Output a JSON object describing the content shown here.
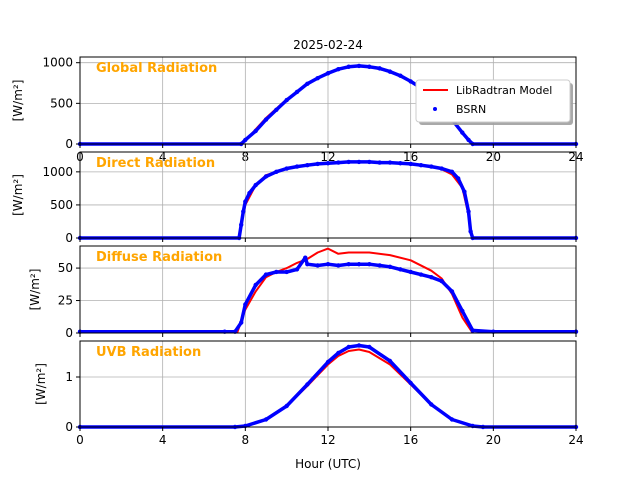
{
  "figure": {
    "title": "2025-02-24",
    "xlabel": "Hour (UTC)",
    "colors": {
      "model": "#ff0000",
      "bsrn": "#0000ff",
      "panel_label": "#ffa500",
      "grid": "#b0b0b0"
    }
  },
  "legend": {
    "model_label": "LibRadtran Model",
    "bsrn_label": "BSRN",
    "location": "upper right of top panel"
  },
  "chart_data": [
    {
      "type": "line",
      "label": "Global Radiation",
      "ylabel": "[W/m²]",
      "xlim": [
        0,
        24
      ],
      "ylim": [
        0,
        1070
      ],
      "xticks": [
        0,
        4,
        8,
        12,
        16,
        20,
        24
      ],
      "xticklabels": [
        "0",
        "4",
        "8",
        "12",
        "16",
        "20",
        "24"
      ],
      "yticks": [
        0,
        500,
        1000
      ],
      "yticklabels": [
        "0",
        "500",
        "1000"
      ],
      "grid": true,
      "series": [
        {
          "name": "LibRadtran Model",
          "style": "line",
          "x": [
            0,
            7.7,
            8,
            9,
            10,
            11,
            12,
            13,
            13.5,
            14,
            15,
            16,
            17,
            18,
            18.5,
            19,
            24
          ],
          "y": [
            0,
            0,
            40,
            320,
            550,
            740,
            880,
            950,
            960,
            950,
            890,
            770,
            580,
            300,
            130,
            0,
            0
          ]
        },
        {
          "name": "BSRN",
          "style": "points",
          "x": [
            0,
            7.8,
            8,
            8.5,
            9,
            9.5,
            10,
            10.5,
            11,
            11.5,
            12,
            12.5,
            13,
            13.5,
            14,
            14.5,
            15,
            15.5,
            16,
            16.5,
            17,
            17.5,
            18,
            18.5,
            18.8,
            19,
            24
          ],
          "y": [
            0,
            0,
            50,
            160,
            300,
            420,
            540,
            640,
            740,
            810,
            870,
            920,
            950,
            960,
            950,
            930,
            890,
            840,
            770,
            690,
            580,
            450,
            300,
            140,
            50,
            0,
            0
          ]
        }
      ]
    },
    {
      "type": "line",
      "label": "Direct Radiation",
      "ylabel": "[W/m²]",
      "xlim": [
        0,
        24
      ],
      "ylim": [
        0,
        1300
      ],
      "xticks": [
        0,
        4,
        8,
        12,
        16,
        20,
        24
      ],
      "xticklabels": [
        "",
        "",
        "",
        "",
        "",
        "",
        ""
      ],
      "yticks": [
        0,
        500,
        1000
      ],
      "yticklabels": [
        "0",
        "500",
        "1000"
      ],
      "grid": true,
      "series": [
        {
          "name": "LibRadtran Model",
          "style": "line",
          "x": [
            7.9,
            8,
            8.5,
            9,
            10,
            11,
            12,
            13,
            14,
            15,
            16,
            17,
            17.5,
            18,
            18.5,
            18.8
          ],
          "y": [
            350,
            500,
            800,
            950,
            1050,
            1110,
            1140,
            1150,
            1150,
            1140,
            1120,
            1080,
            1040,
            960,
            760,
            350
          ]
        },
        {
          "name": "BSRN",
          "style": "points",
          "x": [
            0,
            7.7,
            7.8,
            7.9,
            8,
            8.2,
            8.5,
            9,
            9.5,
            10,
            10.5,
            11,
            11.5,
            12,
            12.5,
            13,
            13.5,
            14,
            14.5,
            15,
            15.5,
            16,
            16.5,
            17,
            17.5,
            18,
            18.3,
            18.6,
            18.8,
            18.9,
            19,
            24
          ],
          "y": [
            0,
            0,
            200,
            400,
            550,
            680,
            800,
            930,
            1000,
            1050,
            1080,
            1100,
            1120,
            1130,
            1140,
            1150,
            1150,
            1150,
            1140,
            1140,
            1130,
            1120,
            1100,
            1080,
            1050,
            1000,
            900,
            700,
            400,
            100,
            0,
            0
          ]
        }
      ]
    },
    {
      "type": "line",
      "label": "Diffuse Radiation",
      "ylabel": "[W/m²]",
      "xlim": [
        0,
        24
      ],
      "ylim": [
        0,
        67
      ],
      "xticks": [
        0,
        4,
        8,
        12,
        16,
        20,
        24
      ],
      "xticklabels": [
        "",
        "",
        "",
        "",
        "",
        "",
        ""
      ],
      "yticks": [
        0,
        25,
        50
      ],
      "yticklabels": [
        "0",
        "25",
        "50"
      ],
      "grid": true,
      "series": [
        {
          "name": "LibRadtran Model",
          "style": "line",
          "x": [
            7.6,
            8,
            8.5,
            9,
            9.5,
            10,
            10.5,
            11,
            11.5,
            12,
            12.5,
            13,
            14,
            15,
            16,
            17,
            17.5,
            18,
            18.5,
            19
          ],
          "y": [
            0,
            18,
            32,
            43,
            47,
            50,
            54,
            57,
            62,
            65,
            61,
            62,
            62,
            60,
            56,
            48,
            42,
            30,
            12,
            0
          ]
        },
        {
          "name": "BSRN",
          "style": "points",
          "x": [
            0,
            7,
            7.5,
            7.8,
            8,
            8.5,
            9,
            9.5,
            10,
            10.5,
            10.9,
            11,
            11.5,
            12,
            12.5,
            13,
            13.5,
            14,
            14.5,
            15,
            15.5,
            16,
            16.5,
            17,
            17.5,
            18,
            18.5,
            19,
            20,
            24
          ],
          "y": [
            1,
            1,
            1,
            8,
            22,
            37,
            45,
            47,
            47,
            49,
            58,
            53,
            52,
            53,
            52,
            53,
            53,
            53,
            52,
            51,
            49,
            47,
            45,
            43,
            40,
            32,
            17,
            2,
            1,
            1
          ]
        }
      ]
    },
    {
      "type": "line",
      "label": "UVB Radiation",
      "ylabel": "[W/m²]",
      "xlim": [
        0,
        24
      ],
      "ylim": [
        0,
        1.72
      ],
      "xticks": [
        0,
        4,
        8,
        12,
        16,
        20,
        24
      ],
      "xticklabels": [
        "0",
        "4",
        "8",
        "12",
        "16",
        "20",
        "24"
      ],
      "yticks": [
        0,
        1
      ],
      "yticklabels": [
        "0",
        "1"
      ],
      "grid": true,
      "series": [
        {
          "name": "LibRadtran Model",
          "style": "line",
          "x": [
            0,
            7.5,
            8,
            9,
            10,
            11,
            12,
            12.5,
            13,
            13.5,
            14,
            15,
            16,
            17,
            18,
            19,
            19.5,
            24
          ],
          "y": [
            0,
            0,
            0.02,
            0.15,
            0.42,
            0.82,
            1.25,
            1.42,
            1.52,
            1.55,
            1.5,
            1.25,
            0.85,
            0.45,
            0.15,
            0.02,
            0,
            0
          ]
        },
        {
          "name": "BSRN",
          "style": "points",
          "x": [
            0,
            7.5,
            8,
            9,
            10,
            11,
            12,
            12.5,
            13,
            13.5,
            14,
            15,
            16,
            17,
            18,
            19,
            19.5,
            24
          ],
          "y": [
            0,
            0,
            0.02,
            0.15,
            0.42,
            0.85,
            1.3,
            1.48,
            1.6,
            1.63,
            1.6,
            1.32,
            0.88,
            0.45,
            0.15,
            0.02,
            0,
            0
          ]
        }
      ]
    }
  ]
}
